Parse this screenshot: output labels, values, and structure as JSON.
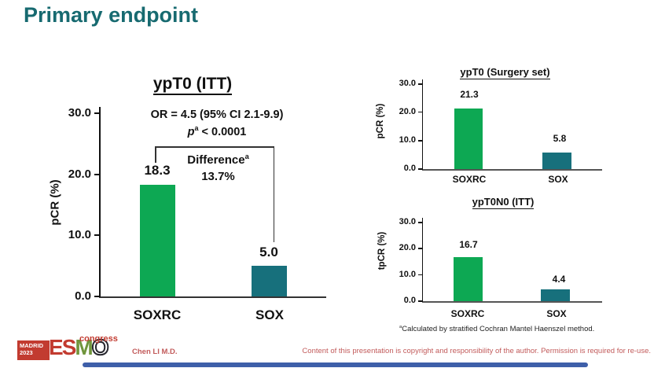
{
  "slide": {
    "title": "Primary endpoint",
    "footer": {
      "footnote_marker": "a",
      "footnote": "Calculated by stratified Cochran Mantel Haenszel method.",
      "presenter": "Chen LI M.D.",
      "copyright": "Content of this presentation is copyright and responsibility of the author. Permission is required for re-use."
    },
    "logo": {
      "location": "MADRID",
      "year": "2023",
      "letters": [
        "E",
        "S",
        "M",
        "O"
      ],
      "suffix": "congress"
    }
  },
  "colors": {
    "title_color": "#176a70",
    "soxrc_bar": "#0da853",
    "sox_bar": "#17707c",
    "logo_red": "#c23b30",
    "logo_green": "#70953c",
    "footer_red": "#c25b5b",
    "bottom_bar": "#3e5fa9"
  },
  "chart_data": [
    {
      "type": "bar",
      "title": "ypT0 (ITT)",
      "ylabel": "pCR (%)",
      "categories": [
        "SOXRC",
        "SOX"
      ],
      "values": [
        18.3,
        5.0
      ],
      "value_labels": [
        "18.3",
        "5.0"
      ],
      "ylim": [
        0,
        30
      ],
      "yticks": [
        "30.0",
        "20.0",
        "10.0",
        "0.0"
      ],
      "grid": "off",
      "annotations": {
        "or_line": "OR = 4.5 (95% CI 2.1-9.9)",
        "p_italic": "p",
        "p_sup": "a",
        "p_rest": "< 0.0001",
        "difference_label": "Difference",
        "difference_sup": "a",
        "difference_value": "13.7%"
      }
    },
    {
      "type": "bar",
      "title": "ypT0 (Surgery set)",
      "ylabel": "pCR (%)",
      "categories": [
        "SOXRC",
        "SOX"
      ],
      "values": [
        21.3,
        5.8
      ],
      "value_labels": [
        "21.3",
        "5.8"
      ],
      "ylim": [
        0,
        30
      ],
      "yticks": [
        "30.0",
        "20.0",
        "10.0",
        "0.0"
      ],
      "grid": "off"
    },
    {
      "type": "bar",
      "title": "ypT0N0 (ITT)",
      "ylabel": "tpCR (%)",
      "categories": [
        "SOXRC",
        "SOX"
      ],
      "values": [
        16.7,
        4.4
      ],
      "value_labels": [
        "16.7",
        "4.4"
      ],
      "ylim": [
        0,
        30
      ],
      "yticks": [
        "30.0",
        "20.0",
        "10.0",
        "0.0"
      ],
      "grid": "off"
    }
  ]
}
